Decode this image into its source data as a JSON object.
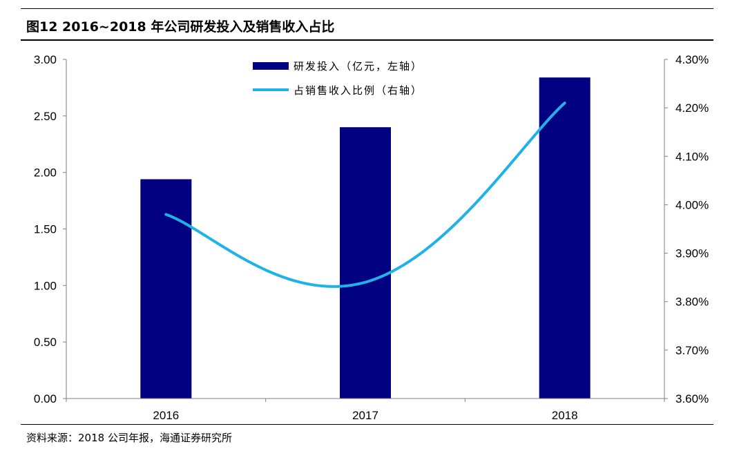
{
  "header": {
    "title": "图12 2016~2018 年公司研发投入及销售收入占比"
  },
  "footer": {
    "source": "资料来源：2018 公司年报，海通证券研究所"
  },
  "colors": {
    "bar": "#000080",
    "line": "#1fb2e8",
    "axis": "#7f7f7f"
  },
  "chart_data": {
    "type": "bar",
    "categories": [
      "2016",
      "2017",
      "2018"
    ],
    "series": [
      {
        "name": "研发投入（亿元，左轴）",
        "type": "bar",
        "axis": "left",
        "values": [
          1.94,
          2.4,
          2.84
        ]
      },
      {
        "name": "占销售收入比例（右轴）",
        "type": "line",
        "axis": "right",
        "values": [
          3.98,
          3.84,
          4.21
        ]
      }
    ],
    "left_axis": {
      "ylim": [
        0,
        3
      ],
      "ticks": [
        "0.00",
        "0.50",
        "1.00",
        "1.50",
        "2.00",
        "2.50",
        "3.00"
      ]
    },
    "right_axis": {
      "ylim": [
        3.6,
        4.3
      ],
      "ticks": [
        "3.60%",
        "3.70%",
        "3.80%",
        "3.90%",
        "4.00%",
        "4.10%",
        "4.20%",
        "4.30%"
      ]
    },
    "legend_position": "top-center",
    "grid": false
  }
}
